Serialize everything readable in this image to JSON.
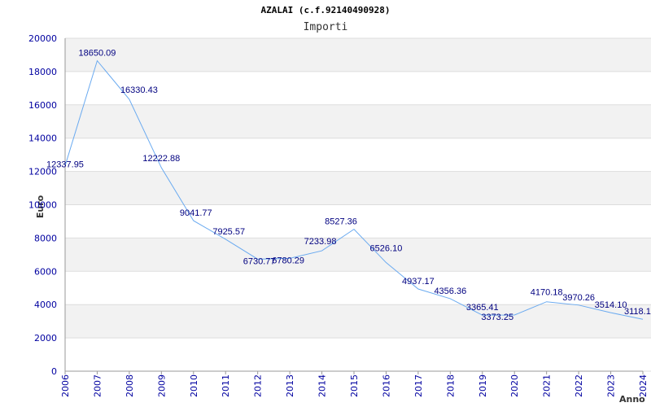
{
  "chart_data": {
    "type": "line",
    "title": "AZALAI (c.f.92140490928)",
    "subtitle": "Importi",
    "xlabel": "Anno",
    "ylabel": "Euro",
    "categories": [
      "2006",
      "2007",
      "2008",
      "2009",
      "2010",
      "2011",
      "2012",
      "2013",
      "2014",
      "2015",
      "2016",
      "2017",
      "2018",
      "2019",
      "2020",
      "2021",
      "2022",
      "2023",
      "2024"
    ],
    "yticks": [
      "0",
      "2000",
      "4000",
      "6000",
      "8000",
      "10000",
      "12000",
      "14000",
      "16000",
      "18000",
      "20000"
    ],
    "series": [
      {
        "values": [
          12337.95,
          18650.09,
          16330.43,
          12222.88,
          9041.77,
          7925.57,
          6730.77,
          6780.29,
          7233.98,
          8527.36,
          6526.1,
          4937.17,
          4356.36,
          3365.41,
          3373.25,
          4170.18,
          3970.26,
          3514.1,
          3118.1
        ],
        "labels": [
          "12337.95",
          "18650.09",
          "16330.43",
          "12222.88",
          "9041.77",
          "7925.57",
          "6730.77",
          "6780.29",
          "7233.98",
          "8527.36",
          "6526.10",
          "4937.17",
          "4356.36",
          "3365.41",
          "3373.25",
          "4170.18",
          "3970.26",
          "3514.10",
          "3118.1"
        ]
      }
    ],
    "ylim": [
      0,
      20000
    ],
    "grid": true,
    "line_color": "#6aaaf0",
    "band_color": "#f2f2f2",
    "tick_color": "#0000a0",
    "label_color": "#000080"
  }
}
